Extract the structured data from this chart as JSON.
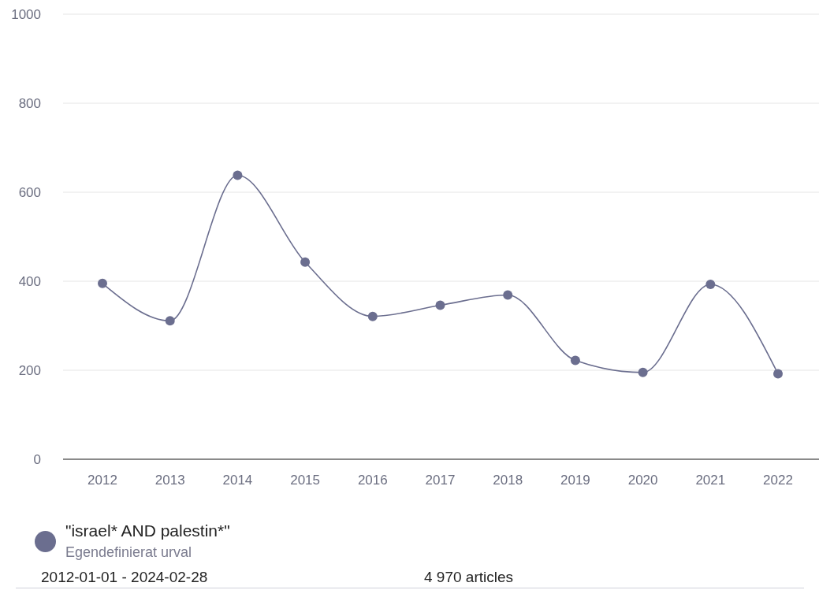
{
  "chart_data": {
    "type": "line",
    "categories": [
      "2012",
      "2013",
      "2014",
      "2015",
      "2016",
      "2017",
      "2018",
      "2019",
      "2020",
      "2021",
      "2022"
    ],
    "series": [
      {
        "name": "\"israel* AND palestin*\"",
        "color": "#6b6e8f",
        "values": [
          395,
          311,
          638,
          443,
          321,
          346,
          369,
          222,
          195,
          393,
          192
        ]
      }
    ],
    "ylim": [
      0,
      1000
    ],
    "yticks": [
      0,
      200,
      400,
      600,
      800,
      1000
    ],
    "grid": "y",
    "legend": "bottom",
    "marker": "circle",
    "line_style": "solid",
    "annotations": [
      "Egendefinierat urval",
      "2012-01-01 - 2024-02-28",
      "4 970 articles"
    ]
  }
}
